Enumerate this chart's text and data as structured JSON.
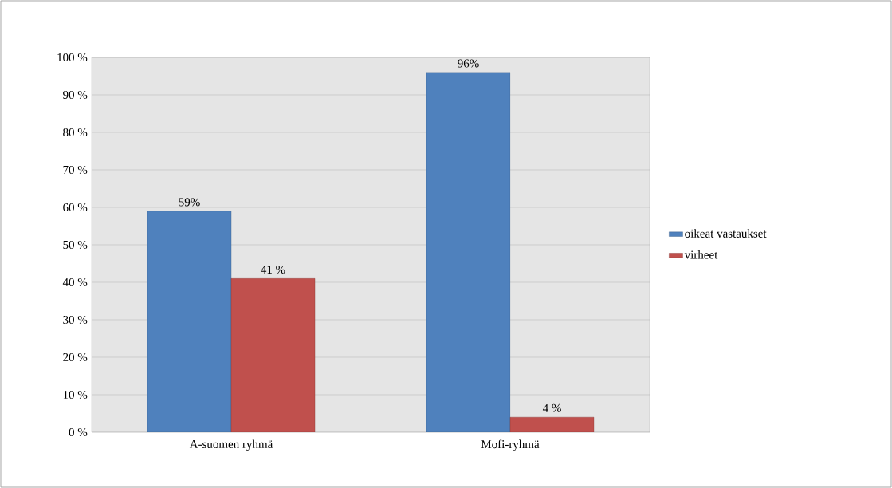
{
  "chart_data": {
    "type": "bar",
    "categories": [
      "A-suomen ryhmä",
      "Mofi-ryhmä"
    ],
    "series": [
      {
        "name": "oikeat vastaukset",
        "color": "#4f81bd",
        "values": [
          59,
          96
        ],
        "value_labels": [
          "59%",
          "96%"
        ]
      },
      {
        "name": "virheet",
        "color": "#c0504d",
        "values": [
          41,
          4
        ],
        "value_labels": [
          "41 %",
          "4 %"
        ]
      }
    ],
    "ylim": [
      0,
      100
    ],
    "yticks": [
      {
        "value": 0,
        "label": "0 %"
      },
      {
        "value": 10,
        "label": "10 %"
      },
      {
        "value": 20,
        "label": "20 %"
      },
      {
        "value": 30,
        "label": "30 %"
      },
      {
        "value": 40,
        "label": "40 %"
      },
      {
        "value": 50,
        "label": "50 %"
      },
      {
        "value": 60,
        "label": "60 %"
      },
      {
        "value": 70,
        "label": "70 %"
      },
      {
        "value": 80,
        "label": "80 %"
      },
      {
        "value": 90,
        "label": "90 %"
      },
      {
        "value": 100,
        "label": "100 %"
      }
    ],
    "grid": "y",
    "legend": "right"
  }
}
